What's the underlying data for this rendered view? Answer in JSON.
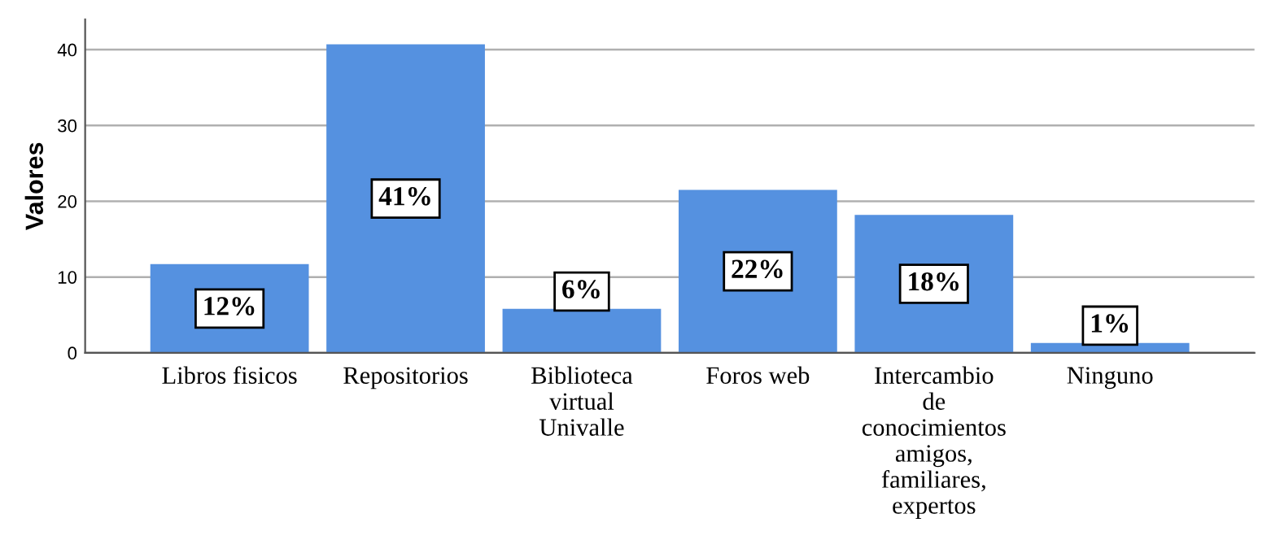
{
  "chart_data": {
    "type": "bar",
    "ylabel": "Valores",
    "categories": [
      "Libros fisicos",
      "Repositorios",
      "Biblioteca\nvirtual\nUnivalle",
      "Foros web",
      "Intercambio\nde\nconocimientos\namigos,\nfamiliares,\nexpertos",
      "Ninguno"
    ],
    "values": [
      11.7,
      40.7,
      5.8,
      21.5,
      18.2,
      1.3
    ],
    "value_labels": [
      "12%",
      "41%",
      "6%",
      "22%",
      "18%",
      "1%"
    ],
    "color": "#5591e0",
    "ylim": [
      0,
      44
    ],
    "yticks": [
      0,
      10,
      20,
      30,
      40
    ],
    "grid": "y"
  }
}
